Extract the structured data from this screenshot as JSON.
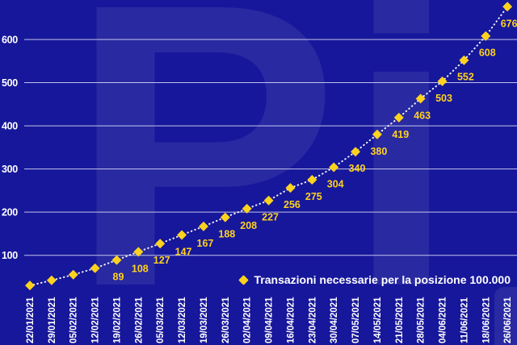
{
  "colors": {
    "background": "#17179B",
    "watermark": "rgba(255,255,255,0.08)",
    "gridline": "rgba(222,226,248,0.85)",
    "series_yellow": "#FFD21E",
    "text_white": "#FFFFFF"
  },
  "watermark": {
    "text": "Pi"
  },
  "legend": {
    "marker_icon": "diamond-icon",
    "label": "Transazioni necessarie per la posizione 100.000"
  },
  "chart_data": {
    "type": "line",
    "title": "",
    "xlabel": "",
    "ylabel": "",
    "line_style": "dotted",
    "marker": "diamond",
    "grid": "horizontal",
    "legend_position": "bottom-right",
    "series_name": "Transazioni necessarie per la posizione 100.000",
    "x": [
      "22/01/2021",
      "29/01/2021",
      "05/02/2021",
      "12/02/2021",
      "19/02/2021",
      "26/02/2021",
      "05/03/2021",
      "12/03/2021",
      "19/03/2021",
      "26/03/2021",
      "02/04/2021",
      "09/04/2021",
      "16/04/2021",
      "23/04/2021",
      "30/04/2021",
      "07/05/2021",
      "14/05/2021",
      "21/05/2021",
      "28/05/2021",
      "04/06/2021",
      "11/06/2021",
      "18/06/2021",
      "26/06/2021"
    ],
    "values": [
      30,
      42,
      55,
      70,
      89,
      108,
      127,
      147,
      167,
      188,
      208,
      227,
      256,
      275,
      304,
      340,
      380,
      419,
      463,
      503,
      552,
      608,
      676
    ],
    "point_labels": [
      null,
      null,
      null,
      null,
      "89",
      "108",
      "127",
      "147",
      "167",
      "188",
      "208",
      "227",
      "256",
      "275",
      "304",
      "340",
      "380",
      "419",
      "463",
      "503",
      "552",
      "608",
      "676"
    ],
    "yticks": [
      100,
      200,
      300,
      400,
      500,
      600
    ],
    "ylim": [
      0,
      690
    ]
  }
}
